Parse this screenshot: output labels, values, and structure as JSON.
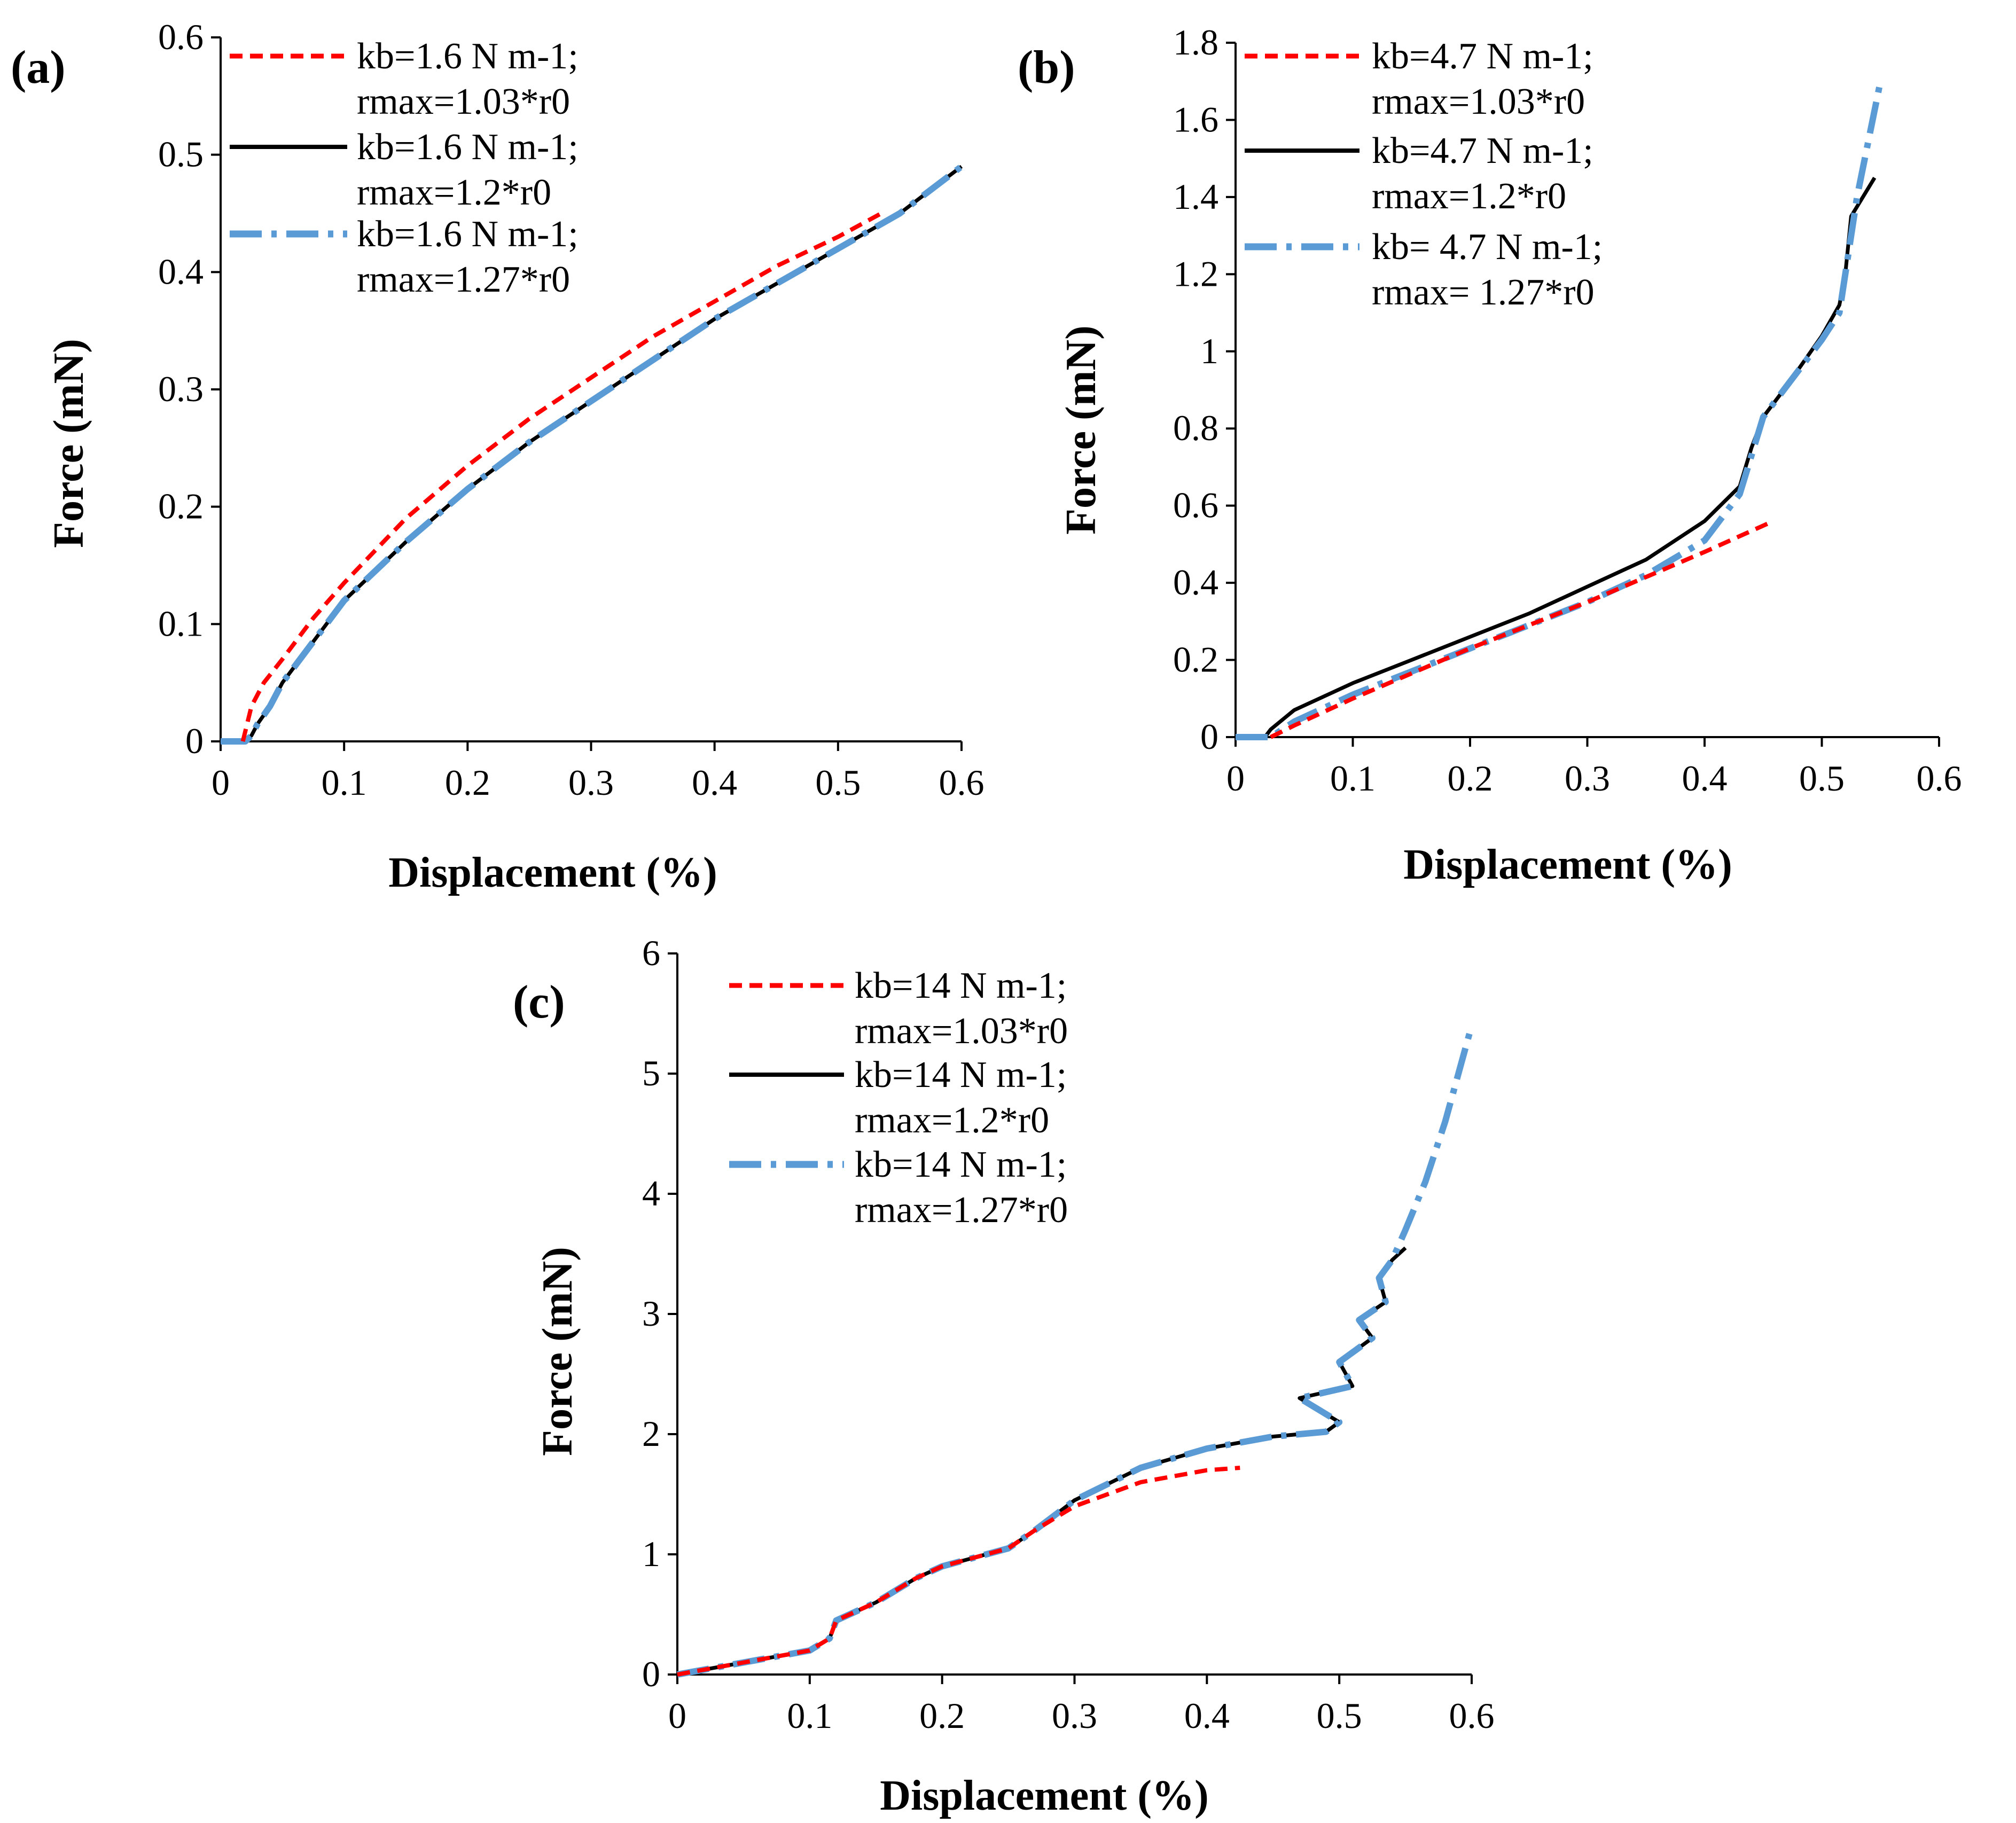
{
  "chart_data": [
    {
      "panel": "(a)",
      "type": "line",
      "xlabel": "Displacement (%)",
      "ylabel": "Force (mN)",
      "xlim": [
        0,
        0.6
      ],
      "ylim": [
        0,
        0.6
      ],
      "xticks": [
        "0",
        "0.1",
        "0.2",
        "0.3",
        "0.4",
        "0.5",
        "0.6"
      ],
      "yticks": [
        "0",
        "0.1",
        "0.2",
        "0.3",
        "0.4",
        "0.5",
        "0.6"
      ],
      "series": [
        {
          "name": "kb=1.6 N m-1;",
          "name2": "rmax=1.03*r0",
          "color": "#ff0000",
          "style": "dashed",
          "x": [
            0.018,
            0.025,
            0.035,
            0.05,
            0.075,
            0.1,
            0.15,
            0.2,
            0.25,
            0.3,
            0.35,
            0.4,
            0.45,
            0.5,
            0.535
          ],
          "y": [
            0.0,
            0.03,
            0.05,
            0.07,
            0.105,
            0.135,
            0.19,
            0.235,
            0.275,
            0.31,
            0.345,
            0.375,
            0.405,
            0.43,
            0.45
          ]
        },
        {
          "name": "kb=1.6 N m-1;",
          "name2": "rmax=1.2*r0",
          "color": "#000000",
          "style": "solid",
          "x": [
            0.0,
            0.01,
            0.02,
            0.025,
            0.03,
            0.04,
            0.05,
            0.075,
            0.1,
            0.15,
            0.2,
            0.25,
            0.3,
            0.35,
            0.4,
            0.45,
            0.5,
            0.55,
            0.6
          ],
          "y": [
            0.0,
            0.0,
            0.0,
            0.005,
            0.015,
            0.03,
            0.05,
            0.085,
            0.12,
            0.17,
            0.215,
            0.255,
            0.29,
            0.325,
            0.36,
            0.39,
            0.42,
            0.45,
            0.49
          ]
        },
        {
          "name": "kb=1.6 N m-1;",
          "name2": "rmax=1.27*r0",
          "color": "#5b9bd5",
          "style": "dashdot",
          "x": [
            0.0,
            0.01,
            0.02,
            0.025,
            0.03,
            0.04,
            0.05,
            0.075,
            0.1,
            0.15,
            0.2,
            0.25,
            0.3,
            0.35,
            0.4,
            0.45,
            0.5,
            0.55,
            0.6
          ],
          "y": [
            0.0,
            0.0,
            0.0,
            0.005,
            0.015,
            0.03,
            0.05,
            0.085,
            0.12,
            0.17,
            0.215,
            0.255,
            0.29,
            0.325,
            0.36,
            0.39,
            0.42,
            0.45,
            0.49
          ]
        }
      ]
    },
    {
      "panel": "(b)",
      "type": "line",
      "xlabel": "Displacement (%)",
      "ylabel": "Force (mN)",
      "xlim": [
        0,
        0.6
      ],
      "ylim": [
        0,
        1.8
      ],
      "xticks": [
        "0",
        "0.1",
        "0.2",
        "0.3",
        "0.4",
        "0.5",
        "0.6"
      ],
      "yticks": [
        "0",
        "0.2",
        "0.4",
        "0.6",
        "0.8",
        "1",
        "1.2",
        "1.4",
        "1.6",
        "1.8"
      ],
      "series": [
        {
          "name": "kb=4.7 N m-1;",
          "name2": "rmax=1.03*r0",
          "color": "#ff0000",
          "style": "dashed",
          "x": [
            0.03,
            0.05,
            0.1,
            0.15,
            0.2,
            0.25,
            0.3,
            0.35,
            0.4,
            0.455
          ],
          "y": [
            0.0,
            0.03,
            0.1,
            0.165,
            0.23,
            0.29,
            0.35,
            0.415,
            0.48,
            0.555
          ]
        },
        {
          "name": "kb=4.7 N m-1;",
          "name2": "rmax=1.2*r0",
          "color": "#000000",
          "style": "solid",
          "x": [
            0.0,
            0.025,
            0.03,
            0.05,
            0.1,
            0.15,
            0.2,
            0.25,
            0.3,
            0.35,
            0.4,
            0.43,
            0.44,
            0.45,
            0.47,
            0.5,
            0.515,
            0.52,
            0.525,
            0.545
          ],
          "y": [
            0.0,
            0.0,
            0.02,
            0.07,
            0.14,
            0.2,
            0.26,
            0.32,
            0.39,
            0.46,
            0.56,
            0.65,
            0.75,
            0.83,
            0.91,
            1.04,
            1.12,
            1.2,
            1.35,
            1.45
          ]
        },
        {
          "name": "kb= 4.7 N m-1;",
          "name2": "rmax= 1.27*r0",
          "color": "#5b9bd5",
          "style": "dashdot",
          "x": [
            0.0,
            0.03,
            0.05,
            0.1,
            0.15,
            0.2,
            0.25,
            0.3,
            0.35,
            0.4,
            0.43,
            0.44,
            0.45,
            0.47,
            0.5,
            0.515,
            0.52,
            0.53,
            0.54,
            0.55
          ],
          "y": [
            0.0,
            0.0,
            0.04,
            0.11,
            0.17,
            0.23,
            0.29,
            0.35,
            0.42,
            0.51,
            0.63,
            0.73,
            0.83,
            0.91,
            1.03,
            1.1,
            1.2,
            1.4,
            1.55,
            1.7
          ]
        }
      ]
    },
    {
      "panel": "(c)",
      "type": "line",
      "xlabel": "Displacement (%)",
      "ylabel": "Force (mN)",
      "xlim": [
        0,
        0.6
      ],
      "ylim": [
        0,
        6
      ],
      "xticks": [
        "0",
        "0.1",
        "0.2",
        "0.3",
        "0.4",
        "0.5",
        "0.6"
      ],
      "yticks": [
        "0",
        "1",
        "2",
        "3",
        "4",
        "5",
        "6"
      ],
      "series": [
        {
          "name": "kb=14 N m-1;",
          "name2": "rmax=1.03*r0",
          "color": "#ff0000",
          "style": "dashed",
          "x": [
            0.0,
            0.05,
            0.1,
            0.115,
            0.12,
            0.15,
            0.18,
            0.2,
            0.25,
            0.27,
            0.3,
            0.35,
            0.4,
            0.425
          ],
          "y": [
            0.0,
            0.1,
            0.2,
            0.3,
            0.45,
            0.6,
            0.8,
            0.9,
            1.05,
            1.2,
            1.4,
            1.6,
            1.7,
            1.72
          ]
        },
        {
          "name": "kb=14 N m-1;",
          "name2": "rmax=1.2*r0",
          "color": "#000000",
          "style": "solid",
          "x": [
            0.0,
            0.05,
            0.1,
            0.115,
            0.12,
            0.15,
            0.18,
            0.2,
            0.25,
            0.27,
            0.3,
            0.35,
            0.4,
            0.45,
            0.49,
            0.5,
            0.47,
            0.51,
            0.5,
            0.525,
            0.515,
            0.535,
            0.53,
            0.54,
            0.55
          ],
          "y": [
            0.0,
            0.1,
            0.2,
            0.3,
            0.45,
            0.6,
            0.8,
            0.9,
            1.05,
            1.2,
            1.45,
            1.72,
            1.88,
            1.98,
            2.02,
            2.1,
            2.3,
            2.4,
            2.6,
            2.8,
            2.95,
            3.1,
            3.3,
            3.45,
            3.55
          ]
        },
        {
          "name": "kb=14 N m-1;",
          "name2": "rmax=1.27*r0",
          "color": "#5b9bd5",
          "style": "dashdot",
          "x": [
            0.0,
            0.05,
            0.1,
            0.115,
            0.12,
            0.15,
            0.18,
            0.2,
            0.25,
            0.27,
            0.3,
            0.35,
            0.4,
            0.45,
            0.49,
            0.5,
            0.47,
            0.51,
            0.5,
            0.525,
            0.515,
            0.535,
            0.53,
            0.54,
            0.55,
            0.565,
            0.58,
            0.59,
            0.6
          ],
          "y": [
            0.0,
            0.1,
            0.2,
            0.3,
            0.45,
            0.6,
            0.8,
            0.9,
            1.05,
            1.2,
            1.45,
            1.72,
            1.88,
            1.98,
            2.02,
            2.1,
            2.3,
            2.4,
            2.6,
            2.8,
            2.95,
            3.1,
            3.3,
            3.45,
            3.7,
            4.1,
            4.6,
            5.0,
            5.4
          ]
        }
      ]
    }
  ]
}
